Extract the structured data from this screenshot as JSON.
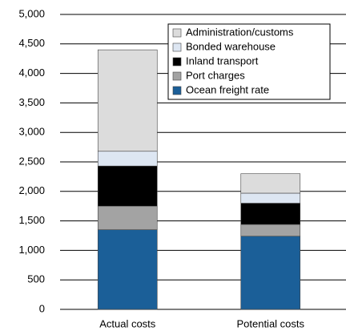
{
  "chart_data": {
    "type": "stacked-bar",
    "categories": [
      "Actual costs",
      "Potential costs"
    ],
    "series": [
      {
        "name": "Ocean freight rate",
        "color": "#1b5f98",
        "values": [
          1350,
          1240
        ]
      },
      {
        "name": "Port charges",
        "color": "#a3a3a3",
        "values": [
          400,
          200
        ]
      },
      {
        "name": "Inland transport",
        "color": "#000000",
        "values": [
          680,
          360
        ]
      },
      {
        "name": "Bonded warehouse",
        "color": "#dde6f2",
        "values": [
          250,
          170
        ]
      },
      {
        "name": "Administration/customs",
        "color": "#dcdcdc",
        "values": [
          1720,
          330
        ]
      }
    ],
    "ylim": [
      0,
      5000
    ],
    "yticks": [
      0,
      500,
      {
        "value": 1000,
        "label": "1,000"
      },
      {
        "value": 1500,
        "label": "1,500"
      },
      {
        "value": 2000,
        "label": "2,000"
      },
      {
        "value": 2500,
        "label": "2,500"
      },
      {
        "value": 3000,
        "label": "3,000"
      },
      {
        "value": 3500,
        "label": "3,500"
      },
      {
        "value": 4000,
        "label": "4,000"
      },
      {
        "value": 4500,
        "label": "4,500"
      },
      {
        "value": 5000,
        "label": "5,000"
      }
    ],
    "grid": true,
    "legend": "top-right"
  }
}
